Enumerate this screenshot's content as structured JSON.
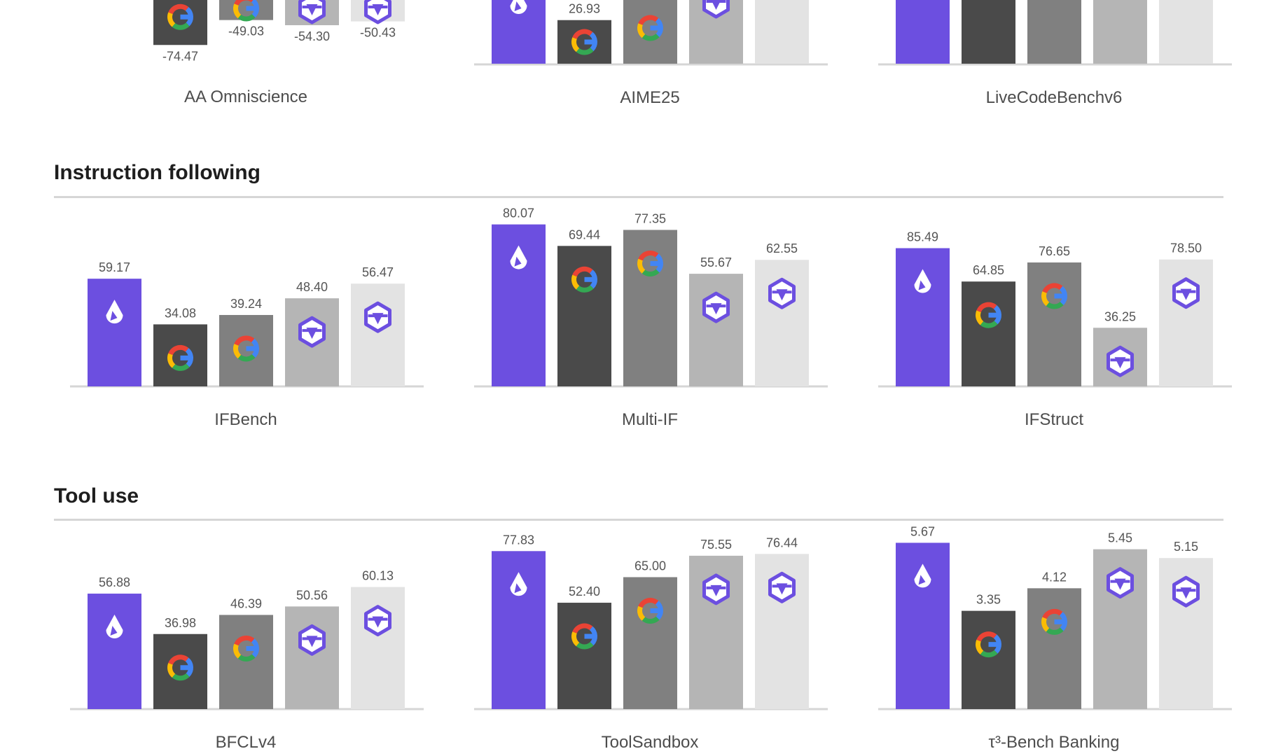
{
  "colors": {
    "liquid": "#6c4fe0",
    "gemini_a": "#4a4a4a",
    "gemini_b": "#808080",
    "qwen_a": "#b5b5b5",
    "qwen_b": "#e3e3e3",
    "axis": "#d6d6d6"
  },
  "bar_icons": [
    "liquid-logo-icon",
    "google-g-icon",
    "google-g-icon",
    "qwen-logo-icon",
    "qwen-logo-icon"
  ],
  "sections": [
    {
      "title": ""
    },
    {
      "title": "Instruction following"
    },
    {
      "title": "Tool use"
    }
  ],
  "chart_data": [
    {
      "type": "bar",
      "title": "AA Omniscience",
      "values": [
        null,
        -74.47,
        -49.03,
        -54.3,
        -50.43
      ],
      "labels": [
        "",
        "-74.47",
        "-49.03",
        "-54.30",
        "-50.43"
      ]
    },
    {
      "type": "bar",
      "title": "AIME25",
      "values": [
        null,
        26.93,
        null,
        null,
        null
      ],
      "labels": [
        "",
        "26.93",
        "",
        "",
        ""
      ]
    },
    {
      "type": "bar",
      "title": "LiveCodeBenchv6",
      "values": [
        null,
        null,
        null,
        null,
        null
      ],
      "labels": [
        "",
        "",
        "",
        "",
        ""
      ]
    },
    {
      "type": "bar",
      "title": "IFBench",
      "values": [
        59.17,
        34.08,
        39.24,
        48.4,
        56.47
      ],
      "labels": [
        "59.17",
        "34.08",
        "39.24",
        "48.40",
        "56.47"
      ]
    },
    {
      "type": "bar",
      "title": "Multi-IF",
      "values": [
        80.07,
        69.44,
        77.35,
        55.67,
        62.55
      ],
      "labels": [
        "80.07",
        "69.44",
        "77.35",
        "55.67",
        "62.55"
      ]
    },
    {
      "type": "bar",
      "title": "IFStruct",
      "values": [
        85.49,
        64.85,
        76.65,
        36.25,
        78.5
      ],
      "labels": [
        "85.49",
        "64.85",
        "76.65",
        "36.25",
        "78.50"
      ]
    },
    {
      "type": "bar",
      "title": "BFCLv4",
      "values": [
        56.88,
        36.98,
        46.39,
        50.56,
        60.13
      ],
      "labels": [
        "56.88",
        "36.98",
        "46.39",
        "50.56",
        "60.13"
      ]
    },
    {
      "type": "bar",
      "title": "ToolSandbox",
      "values": [
        77.83,
        52.4,
        65.0,
        75.55,
        76.44
      ],
      "labels": [
        "77.83",
        "52.40",
        "65.00",
        "75.55",
        "76.44"
      ]
    },
    {
      "type": "bar",
      "title": "τ³-Bench Banking",
      "values": [
        5.67,
        3.35,
        4.12,
        5.45,
        5.15
      ],
      "labels": [
        "5.67",
        "3.35",
        "4.12",
        "5.45",
        "5.15"
      ]
    }
  ]
}
